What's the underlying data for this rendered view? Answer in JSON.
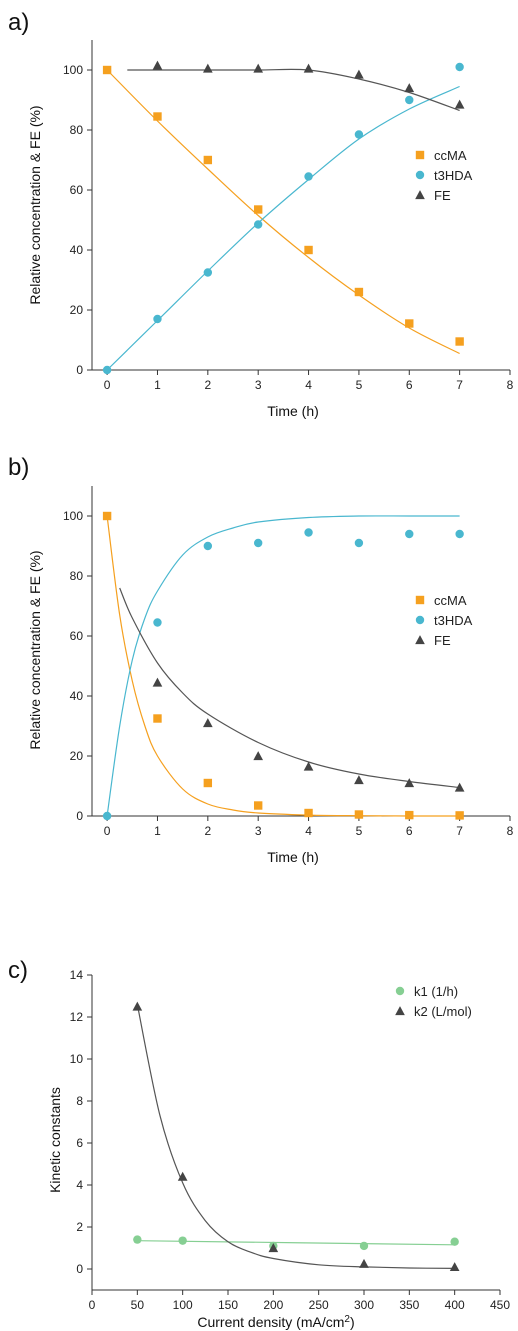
{
  "colors": {
    "ccMA": "#f5a01f",
    "t3HDA": "#49b7cf",
    "FE": "#444444",
    "k1": "#86cf93",
    "k2": "#444444"
  },
  "chart_data": [
    {
      "panel": "a)",
      "type": "scatter",
      "xlabel": "Time (h)",
      "ylabel": "Relative concentration & FE (%)",
      "xlim": [
        -0.3,
        8
      ],
      "ylim": [
        0,
        110
      ],
      "xticks": [
        0,
        1,
        2,
        3,
        4,
        5,
        6,
        7,
        8
      ],
      "yticks": [
        0,
        20,
        40,
        60,
        80,
        100
      ],
      "legend_position": "right-middle",
      "series": [
        {
          "name": "ccMA",
          "color": "#f5a01f",
          "marker": "square",
          "x": [
            0,
            1,
            2,
            3,
            4,
            5,
            6,
            7
          ],
          "y": [
            100,
            84.5,
            70,
            53.5,
            40,
            26,
            15.5,
            9.5
          ],
          "fit": {
            "x": [
              0,
              1,
              2,
              3,
              4,
              5,
              6,
              7
            ],
            "y": [
              100,
              83,
              67,
              51.5,
              37.5,
              25,
              14,
              5.5
            ]
          }
        },
        {
          "name": "t3HDA",
          "color": "#49b7cf",
          "marker": "circle",
          "x": [
            0,
            1,
            2,
            3,
            4,
            5,
            6,
            7
          ],
          "y": [
            0,
            17,
            32.5,
            48.5,
            64.5,
            78.5,
            90,
            101
          ],
          "fit": {
            "x": [
              0,
              1,
              2,
              3,
              4,
              5,
              6,
              7
            ],
            "y": [
              0,
              16.5,
              33,
              49,
              63.5,
              77,
              87,
              94.5
            ]
          }
        },
        {
          "name": "FE",
          "color": "#444444",
          "marker": "triangle",
          "x": [
            1,
            2,
            3,
            4,
            5,
            6,
            7
          ],
          "y": [
            101.5,
            100.5,
            100.5,
            100.5,
            98.5,
            94,
            88.5
          ],
          "fit": {
            "x": [
              0.4,
              1,
              2,
              3,
              4,
              5,
              6,
              7
            ],
            "y": [
              100,
              100,
              100,
              100,
              100,
              97,
              92.5,
              86.5
            ]
          }
        }
      ]
    },
    {
      "panel": "b)",
      "type": "scatter",
      "xlabel": "Time (h)",
      "ylabel": "Relative concentration & FE (%)",
      "xlim": [
        -0.3,
        8
      ],
      "ylim": [
        0,
        110
      ],
      "xticks": [
        0,
        1,
        2,
        3,
        4,
        5,
        6,
        7,
        8
      ],
      "yticks": [
        0,
        20,
        40,
        60,
        80,
        100
      ],
      "legend_position": "right-middle",
      "series": [
        {
          "name": "ccMA",
          "color": "#f5a01f",
          "marker": "square",
          "x": [
            0,
            1,
            2,
            3,
            4,
            5,
            6,
            7
          ],
          "y": [
            100,
            32.5,
            11,
            3.5,
            1,
            0.5,
            0.3,
            0.2
          ],
          "fit": {
            "x": [
              0,
              0.25,
              0.5,
              0.75,
              1,
              1.5,
              2,
              2.5,
              3,
              4,
              5,
              6,
              7
            ],
            "y": [
              100,
              67,
              45,
              30,
              20,
              9,
              4,
              2,
              1,
              0.3,
              0.1,
              0,
              0
            ]
          }
        },
        {
          "name": "t3HDA",
          "color": "#49b7cf",
          "marker": "circle",
          "x": [
            0,
            1,
            2,
            3,
            4,
            5,
            6,
            7
          ],
          "y": [
            0,
            64.5,
            90,
            91,
            94.5,
            91,
            94,
            94
          ],
          "fit": {
            "x": [
              0,
              0.25,
              0.5,
              0.75,
              1,
              1.5,
              2,
              2.5,
              3,
              4,
              5,
              6,
              7
            ],
            "y": [
              0,
              30,
              52,
              66,
              75,
              87,
              93,
              96,
              98,
              99.5,
              100,
              100,
              100
            ]
          }
        },
        {
          "name": "FE",
          "color": "#444444",
          "marker": "triangle",
          "x": [
            1,
            2,
            3,
            4,
            5,
            6,
            7
          ],
          "y": [
            44.5,
            31,
            20,
            16.5,
            12,
            11,
            9.5
          ],
          "fit": {
            "x": [
              0.25,
              0.5,
              1,
              1.5,
              2,
              3,
              4,
              5,
              6,
              7
            ],
            "y": [
              76,
              66,
              51,
              41,
              34,
              24.5,
              18,
              14,
              11.5,
              9.5
            ]
          }
        }
      ]
    },
    {
      "panel": "c)",
      "type": "scatter",
      "xlabel": "Current density (mA/cm",
      "xlabel_sup": "2",
      "xlabel_end": ")",
      "ylabel": "Kinetic constants",
      "xlim": [
        0,
        450
      ],
      "ylim": [
        -1,
        14
      ],
      "xticks": [
        0,
        50,
        100,
        150,
        200,
        250,
        300,
        350,
        400,
        450
      ],
      "yticks": [
        0,
        2,
        4,
        6,
        8,
        10,
        12,
        14
      ],
      "legend_position": "top-right",
      "series": [
        {
          "name": "k1 (1/h)",
          "color": "#86cf93",
          "marker": "circle",
          "x": [
            50,
            100,
            200,
            300,
            400
          ],
          "y": [
            1.4,
            1.35,
            1.1,
            1.1,
            1.3
          ],
          "fit": {
            "x": [
              50,
              400
            ],
            "y": [
              1.35,
              1.15
            ]
          }
        },
        {
          "name": "k2 (L/mol)",
          "color": "#444444",
          "marker": "triangle",
          "x": [
            50,
            100,
            200,
            300,
            400
          ],
          "y": [
            12.5,
            4.4,
            1.0,
            0.25,
            0.1
          ],
          "fit": {
            "x": [
              50,
              75,
              100,
              125,
              150,
              175,
              200,
              250,
              300,
              350,
              400
            ],
            "y": [
              12.6,
              7.3,
              4.1,
              2.3,
              1.3,
              0.8,
              0.5,
              0.2,
              0.1,
              0.05,
              0.03
            ]
          }
        }
      ]
    }
  ]
}
